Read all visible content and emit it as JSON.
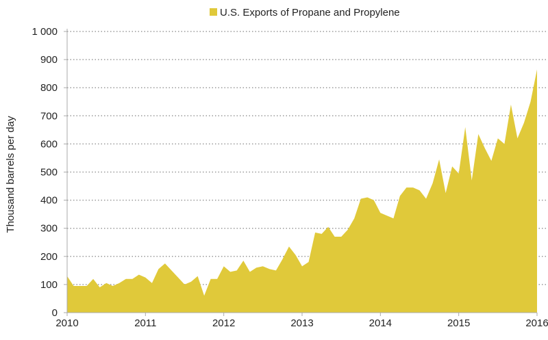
{
  "chart_data": {
    "type": "area",
    "legend": {
      "label": "U.S. Exports of Propane and Propylene",
      "placement": "top-center"
    },
    "ylabel": "Thousand  barrels per day",
    "xlabel": "",
    "ylim": [
      0,
      1000
    ],
    "xlim": [
      2010,
      2016
    ],
    "yticks": [
      "0",
      "100",
      "200",
      "300",
      "400",
      "500",
      "600",
      "700",
      "800",
      "900",
      "1 000"
    ],
    "xticks": [
      "2010",
      "2011",
      "2012",
      "2013",
      "2014",
      "2015",
      "2016"
    ],
    "grid": "horizontal dotted",
    "color": "#e0c93a",
    "frequency": "monthly",
    "start": "2010-01",
    "values": [
      130,
      95,
      95,
      95,
      120,
      90,
      105,
      95,
      105,
      120,
      120,
      135,
      125,
      105,
      155,
      175,
      150,
      125,
      100,
      110,
      130,
      60,
      120,
      120,
      165,
      145,
      150,
      185,
      145,
      160,
      165,
      155,
      150,
      190,
      235,
      205,
      165,
      180,
      285,
      280,
      305,
      270,
      270,
      295,
      335,
      405,
      410,
      400,
      355,
      345,
      335,
      415,
      445,
      445,
      435,
      405,
      460,
      545,
      425,
      520,
      495,
      660,
      470,
      635,
      585,
      540,
      620,
      600,
      740,
      620,
      675,
      750,
      865
    ]
  }
}
